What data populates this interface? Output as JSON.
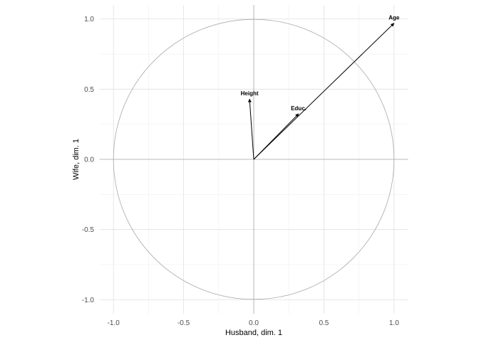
{
  "chart_data": {
    "type": "correlation-circle",
    "xlabel": "Husband, dim. 1",
    "ylabel": "Wife, dim. 1",
    "xlim": [
      -1.1,
      1.1
    ],
    "ylim": [
      -1.1,
      1.1
    ],
    "xticks": [
      "-1.0",
      "-0.5",
      "0.0",
      "0.5",
      "1.0"
    ],
    "yticks": [
      "-1.0",
      "-0.5",
      "0.0",
      "0.5",
      "1.0"
    ],
    "grid": true,
    "unit_circle": true,
    "vectors": [
      {
        "label": "Age",
        "x": 1.0,
        "y": 0.97
      },
      {
        "label": "Height",
        "x": -0.03,
        "y": 0.43
      },
      {
        "label": "Educ.",
        "x": 0.32,
        "y": 0.325
      }
    ]
  }
}
